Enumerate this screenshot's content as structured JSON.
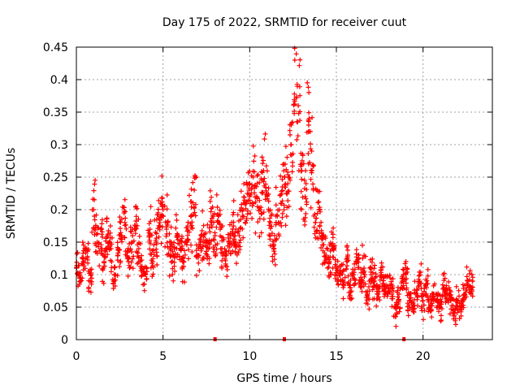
{
  "chart_data": {
    "type": "scatter",
    "title": "Day 175 of 2022, SRMTID for receiver cuut",
    "xlabel": "GPS time / hours",
    "ylabel": "SRMTID / TECUs",
    "xlim": [
      0,
      24
    ],
    "ylim": [
      0,
      0.45
    ],
    "xticks": [
      0,
      5,
      10,
      15,
      20
    ],
    "yticks": [
      0,
      0.05,
      0.1,
      0.15,
      0.2,
      0.25,
      0.3,
      0.35,
      0.4,
      0.45
    ],
    "xtick_labels": [
      "0",
      "5",
      "10",
      "15",
      "20"
    ],
    "ytick_labels": [
      "0",
      "0.05",
      "0.1",
      "0.15",
      "0.2",
      "0.25",
      "0.3",
      "0.35",
      "0.4",
      "0.45"
    ],
    "grid": true,
    "marker": "+",
    "series_color": "#ff0000",
    "series": [
      {
        "name": "SRMTID",
        "x": [
          0.0,
          0.2,
          0.4,
          0.6,
          0.8,
          1.0,
          1.2,
          1.4,
          1.6,
          1.8,
          2.0,
          2.2,
          2.4,
          2.6,
          2.8,
          3.0,
          3.2,
          3.4,
          3.6,
          3.8,
          4.0,
          4.2,
          4.4,
          4.6,
          4.8,
          5.0,
          5.2,
          5.4,
          5.6,
          5.8,
          6.0,
          6.2,
          6.4,
          6.6,
          6.8,
          7.0,
          7.2,
          7.4,
          7.6,
          7.8,
          8.0,
          8.2,
          8.4,
          8.6,
          8.8,
          9.0,
          9.2,
          9.4,
          9.6,
          9.8,
          10.0,
          10.2,
          10.4,
          10.6,
          10.8,
          11.0,
          11.2,
          11.4,
          11.6,
          11.8,
          12.0,
          12.2,
          12.4,
          12.6,
          12.8,
          13.0,
          13.2,
          13.4,
          13.6,
          13.8,
          14.0,
          14.2,
          14.4,
          14.6,
          14.8,
          15.0,
          15.2,
          15.4,
          15.6,
          15.8,
          16.0,
          16.2,
          16.4,
          16.6,
          16.8,
          17.0,
          17.2,
          17.4,
          17.6,
          17.8,
          18.0,
          18.2,
          18.4,
          18.6,
          18.8,
          19.0,
          19.2,
          19.4,
          19.6,
          19.8,
          20.0,
          20.2,
          20.4,
          20.6,
          20.8,
          21.0,
          21.2,
          21.4,
          21.6,
          21.8,
          22.0,
          22.2,
          22.4,
          22.6,
          22.8
        ],
        "y": [
          0.11,
          0.1,
          0.12,
          0.14,
          0.09,
          0.2,
          0.15,
          0.17,
          0.12,
          0.16,
          0.14,
          0.1,
          0.13,
          0.16,
          0.18,
          0.12,
          0.15,
          0.17,
          0.14,
          0.11,
          0.1,
          0.16,
          0.12,
          0.15,
          0.18,
          0.2,
          0.17,
          0.14,
          0.13,
          0.16,
          0.14,
          0.12,
          0.15,
          0.19,
          0.23,
          0.13,
          0.16,
          0.15,
          0.14,
          0.18,
          0.16,
          0.19,
          0.14,
          0.13,
          0.15,
          0.17,
          0.15,
          0.16,
          0.19,
          0.21,
          0.24,
          0.25,
          0.22,
          0.2,
          0.26,
          0.22,
          0.18,
          0.14,
          0.19,
          0.21,
          0.25,
          0.24,
          0.3,
          0.43,
          0.36,
          0.26,
          0.22,
          0.33,
          0.26,
          0.18,
          0.2,
          0.16,
          0.13,
          0.12,
          0.14,
          0.11,
          0.1,
          0.09,
          0.12,
          0.08,
          0.1,
          0.12,
          0.09,
          0.11,
          0.07,
          0.1,
          0.09,
          0.07,
          0.1,
          0.08,
          0.08,
          0.07,
          0.05,
          0.06,
          0.09,
          0.1,
          0.06,
          0.05,
          0.07,
          0.09,
          0.06,
          0.08,
          0.05,
          0.07,
          0.06,
          0.05,
          0.08,
          0.07,
          0.06,
          0.04,
          0.06,
          0.05,
          0.07,
          0.09,
          0.08
        ]
      }
    ],
    "baseline_marks_x": [
      8.0,
      12.0,
      18.9
    ]
  }
}
